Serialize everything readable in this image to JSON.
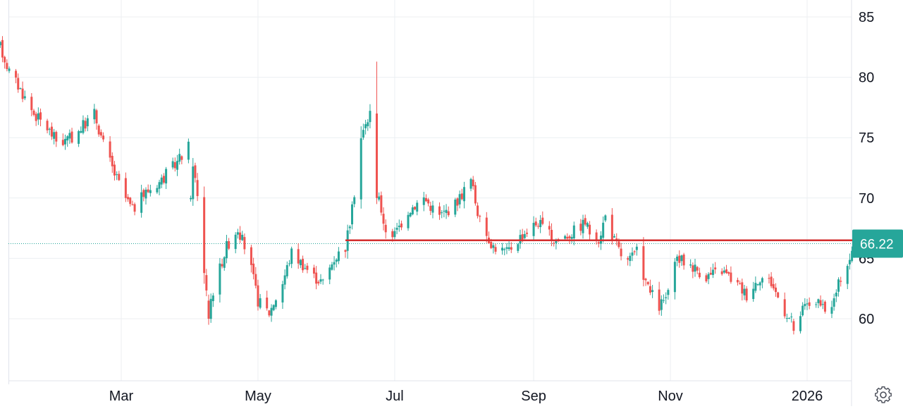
{
  "chart_data": {
    "type": "candlestick",
    "title": "",
    "xlabel": "",
    "ylabel": "",
    "x_ticks": [
      {
        "label": "Mar",
        "date": "2025-03-01"
      },
      {
        "label": "May",
        "date": "2025-05-01"
      },
      {
        "label": "Jul",
        "date": "2025-07-01"
      },
      {
        "label": "Sep",
        "date": "2025-09-01"
      },
      {
        "label": "Nov",
        "date": "2025-11-01"
      },
      {
        "label": "2026",
        "date": "2026-01-01"
      }
    ],
    "y_ticks": [
      {
        "label": "60",
        "value": 60
      },
      {
        "label": "65",
        "value": 65
      },
      {
        "label": "70",
        "value": 70
      },
      {
        "label": "75",
        "value": 75
      },
      {
        "label": "80",
        "value": 80
      },
      {
        "label": "85",
        "value": 85
      }
    ],
    "ylim": [
      55,
      86
    ],
    "xlim": [
      "2025-01-06",
      "2026-01-26"
    ],
    "grid": true,
    "colors": {
      "up": "#26a69a",
      "down": "#ef5350",
      "level_line": "#d32f2f",
      "last_price": "#26a69a",
      "grid": "#eceff2"
    },
    "last_price": {
      "value": 66.22,
      "label": "66.22"
    },
    "horizontal_line": {
      "value": 66.5,
      "start_date": "2025-06-09",
      "end_date": "2026-01-24"
    },
    "trend_points": [
      [
        "2025-01-06",
        82.5
      ],
      [
        "2025-01-10",
        80.5
      ],
      [
        "2025-01-15",
        79.0
      ],
      [
        "2025-01-21",
        77.0
      ],
      [
        "2025-01-27",
        75.8
      ],
      [
        "2025-02-01",
        74.5
      ],
      [
        "2025-02-07",
        75.0
      ],
      [
        "2025-02-12",
        76.0
      ],
      [
        "2025-02-17",
        77.0
      ],
      [
        "2025-02-21",
        74.5
      ],
      [
        "2025-02-26",
        72.0
      ],
      [
        "2025-03-03",
        70.0
      ],
      [
        "2025-03-06",
        69.0
      ],
      [
        "2025-03-12",
        70.5
      ],
      [
        "2025-03-19",
        71.5
      ],
      [
        "2025-03-26",
        73.0
      ],
      [
        "2025-04-01",
        74.5
      ],
      [
        "2025-04-04",
        70.0
      ],
      [
        "2025-04-07",
        64.0
      ],
      [
        "2025-04-09",
        61.0
      ],
      [
        "2025-04-12",
        63.0
      ],
      [
        "2025-04-17",
        66.0
      ],
      [
        "2025-04-22",
        67.5
      ],
      [
        "2025-04-27",
        65.0
      ],
      [
        "2025-05-01",
        61.5
      ],
      [
        "2025-05-06",
        60.5
      ],
      [
        "2025-05-12",
        63.0
      ],
      [
        "2025-05-16",
        65.5
      ],
      [
        "2025-05-21",
        64.5
      ],
      [
        "2025-05-26",
        63.5
      ],
      [
        "2025-05-30",
        63.0
      ],
      [
        "2025-06-04",
        65.0
      ],
      [
        "2025-06-09",
        66.0
      ],
      [
        "2025-06-12",
        69.0
      ],
      [
        "2025-06-16",
        75.0
      ],
      [
        "2025-06-20",
        77.0
      ],
      [
        "2025-06-23",
        72.0
      ],
      [
        "2025-06-26",
        67.5
      ],
      [
        "2025-07-01",
        67.0
      ],
      [
        "2025-07-07",
        69.0
      ],
      [
        "2025-07-14",
        70.0
      ],
      [
        "2025-07-21",
        68.5
      ],
      [
        "2025-07-28",
        69.5
      ],
      [
        "2025-08-04",
        71.5
      ],
      [
        "2025-08-08",
        68.0
      ],
      [
        "2025-08-14",
        66.0
      ],
      [
        "2025-08-20",
        65.5
      ],
      [
        "2025-08-27",
        67.0
      ],
      [
        "2025-09-03",
        68.0
      ],
      [
        "2025-09-10",
        66.5
      ],
      [
        "2025-09-17",
        67.0
      ],
      [
        "2025-09-24",
        68.0
      ],
      [
        "2025-09-29",
        66.0
      ],
      [
        "2025-10-03",
        68.5
      ],
      [
        "2025-10-07",
        66.5
      ],
      [
        "2025-10-12",
        64.5
      ],
      [
        "2025-10-17",
        65.5
      ],
      [
        "2025-10-22",
        62.5
      ],
      [
        "2025-10-27",
        61.0
      ],
      [
        "2025-10-31",
        62.0
      ],
      [
        "2025-11-04",
        65.0
      ],
      [
        "2025-11-10",
        64.5
      ],
      [
        "2025-11-17",
        63.5
      ],
      [
        "2025-11-24",
        64.0
      ],
      [
        "2025-11-30",
        63.0
      ],
      [
        "2025-12-05",
        62.0
      ],
      [
        "2025-12-11",
        63.5
      ],
      [
        "2025-12-16",
        63.0
      ],
      [
        "2025-12-21",
        61.0
      ],
      [
        "2025-12-26",
        59.5
      ],
      [
        "2025-12-31",
        61.0
      ],
      [
        "2026-01-05",
        61.5
      ],
      [
        "2026-01-09",
        60.5
      ],
      [
        "2026-01-13",
        61.5
      ],
      [
        "2026-01-16",
        63.5
      ],
      [
        "2026-01-20",
        65.0
      ],
      [
        "2026-01-23",
        66.22
      ]
    ],
    "events": [
      {
        "date": "2025-06-23",
        "high": 81.3,
        "low": 69.5,
        "open": 77.0,
        "close": 70.0
      },
      {
        "date": "2025-04-09",
        "high": 62.0,
        "low": 59.5,
        "open": 61.5,
        "close": 60.0
      },
      {
        "date": "2025-04-01",
        "high": 70.2,
        "low": 69.7,
        "open": 69.9,
        "close": 70.0
      },
      {
        "date": "2025-12-26",
        "high": 60.0,
        "low": 58.7,
        "open": 59.8,
        "close": 59.0
      }
    ]
  },
  "settings": {
    "icon": "gear-icon"
  }
}
